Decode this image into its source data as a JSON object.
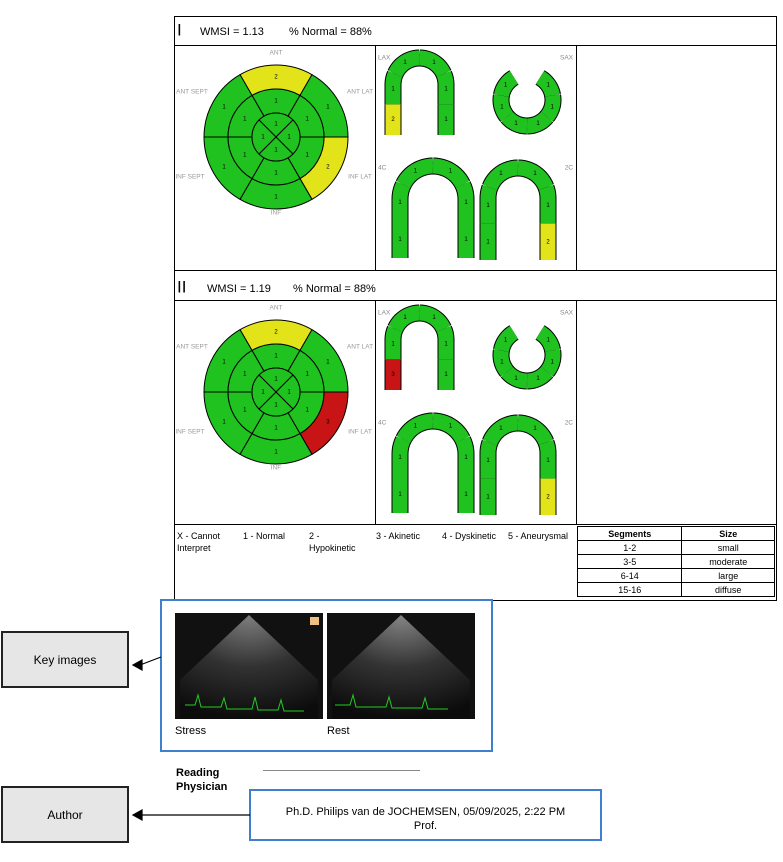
{
  "stages": [
    {
      "label": "I",
      "wmsi": "WMSI =  1.13",
      "normal": "% Normal =  88%",
      "bullseye": {
        "region_labels": [
          "ANT",
          "ANT LAT",
          "INF LAT",
          "INF",
          "INF SEPT",
          "ANT SEPT"
        ],
        "basal": [
          2,
          1,
          2,
          1,
          1,
          1
        ],
        "mid": [
          1,
          1,
          1,
          1,
          1,
          1
        ],
        "apical": [
          1,
          1,
          1,
          1
        ]
      },
      "views": [
        {
          "label": "LAX",
          "segments": [
            2,
            1,
            1,
            1,
            1,
            1
          ]
        },
        {
          "label": "SAX",
          "segments": [
            1,
            1,
            1,
            1,
            1,
            1
          ]
        },
        {
          "label": "4C",
          "segments": [
            1,
            1,
            1,
            1,
            1,
            1
          ]
        },
        {
          "label": "2C",
          "segments": [
            1,
            1,
            1,
            1,
            1,
            2
          ]
        }
      ]
    },
    {
      "label": "II",
      "wmsi": "WMSI =  1.19",
      "normal": "% Normal =  88%",
      "bullseye": {
        "region_labels": [
          "ANT",
          "ANT LAT",
          "INF LAT",
          "INF",
          "INF SEPT",
          "ANT SEPT"
        ],
        "basal": [
          2,
          1,
          3,
          1,
          1,
          1
        ],
        "mid": [
          1,
          1,
          1,
          1,
          1,
          1
        ],
        "apical": [
          1,
          1,
          1,
          1
        ]
      },
      "views": [
        {
          "label": "LAX",
          "segments": [
            3,
            1,
            1,
            1,
            1,
            1
          ]
        },
        {
          "label": "SAX",
          "segments": [
            1,
            1,
            1,
            1,
            1,
            1
          ]
        },
        {
          "label": "4C",
          "segments": [
            1,
            1,
            1,
            1,
            1,
            1
          ]
        },
        {
          "label": "2C",
          "segments": [
            1,
            1,
            1,
            1,
            1,
            2
          ]
        }
      ]
    }
  ],
  "score_colors": {
    "1": "#1fc21f",
    "2": "#e3e31a",
    "3": "#c81414"
  },
  "legend": [
    "X - Cannot Interpret",
    "1 - Normal",
    "2 - Hypokinetic",
    "3 - Akinetic",
    "4 - Dyskinetic",
    "5 - Aneurysmal"
  ],
  "size_table": {
    "headers": [
      "Segments",
      "Size"
    ],
    "rows": [
      [
        "1-2",
        "small"
      ],
      [
        "3-5",
        "moderate"
      ],
      [
        "6-14",
        "large"
      ],
      [
        "15-16",
        "diffuse"
      ]
    ]
  },
  "key_images": {
    "label": "Key images",
    "captions": [
      "Stress",
      "Rest"
    ]
  },
  "reading_physician": "Reading Physician",
  "author": {
    "label": "Author",
    "name": "Ph.D. Philips van de JOCHEMSEN, 05/09/2025, 2:22 PM",
    "title": "Prof."
  }
}
